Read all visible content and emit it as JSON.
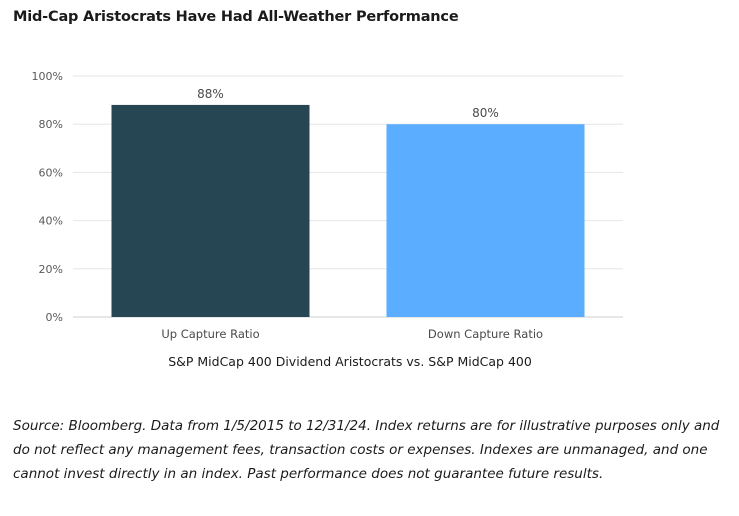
{
  "chart_data": {
    "type": "bar",
    "title": "Mid-Cap Aristocrats Have Had All-Weather Performance",
    "categories": [
      "Up Capture Ratio",
      "Down Capture Ratio"
    ],
    "values": [
      88,
      80
    ],
    "data_labels": [
      "88%",
      "80%"
    ],
    "xlabel": "S&P MidCap 400 Dividend Aristocrats vs. S&P MidCap 400",
    "ylabel": "",
    "ylim": [
      0,
      100
    ],
    "yticks": [
      0,
      20,
      40,
      60,
      80,
      100
    ],
    "ytick_labels": [
      "0%",
      "20%",
      "40%",
      "60%",
      "80%",
      "100%"
    ],
    "grid": true,
    "legend": "none",
    "colors": [
      "#264653",
      "#5aadff"
    ]
  },
  "footnote": "Source: Bloomberg. Data from 1/5/2015 to 12/31/24. Index returns are for illustrative purposes only and do not reflect any management fees, transaction costs or expenses. Indexes are unmanaged, and one cannot invest directly in an index. Past performance does not guarantee future results."
}
